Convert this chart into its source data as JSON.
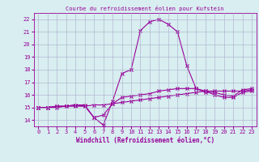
{
  "title": "Courbe du refroidissement éolien pour Kufstein",
  "xlabel": "Windchill (Refroidissement éolien,°C)",
  "x": [
    0,
    1,
    2,
    3,
    4,
    5,
    6,
    7,
    8,
    9,
    10,
    11,
    12,
    13,
    14,
    15,
    16,
    17,
    18,
    19,
    20,
    21,
    22,
    23
  ],
  "temp": [
    15.0,
    15.0,
    15.1,
    15.1,
    15.2,
    15.2,
    14.2,
    13.6,
    15.5,
    17.7,
    18.0,
    21.1,
    21.8,
    22.0,
    21.6,
    21.0,
    18.3,
    16.5,
    16.2,
    16.2,
    16.0,
    15.9,
    16.4,
    16.5
  ],
  "windchill": [
    15.0,
    15.0,
    15.1,
    15.1,
    15.2,
    15.1,
    14.2,
    14.4,
    15.3,
    15.8,
    15.9,
    16.0,
    16.1,
    16.3,
    16.4,
    16.5,
    16.5,
    16.5,
    16.3,
    16.0,
    15.8,
    15.8,
    16.2,
    16.3
  ],
  "ref": [
    15.0,
    15.0,
    15.0,
    15.1,
    15.1,
    15.1,
    15.2,
    15.2,
    15.3,
    15.4,
    15.5,
    15.6,
    15.7,
    15.8,
    15.9,
    16.0,
    16.1,
    16.2,
    16.3,
    16.3,
    16.3,
    16.3,
    16.3,
    16.4
  ],
  "line_color": "#990099",
  "bg_color": "#d8eef0",
  "grid_color": "#aaaacc",
  "ylim": [
    13.5,
    22.5
  ],
  "xlim": [
    -0.5,
    23.5
  ],
  "yticks": [
    14,
    15,
    16,
    17,
    18,
    19,
    20,
    21,
    22
  ],
  "xticks": [
    0,
    1,
    2,
    3,
    4,
    5,
    6,
    7,
    8,
    9,
    10,
    11,
    12,
    13,
    14,
    15,
    16,
    17,
    18,
    19,
    20,
    21,
    22,
    23
  ],
  "marker": "x",
  "markersize": 2.5,
  "linewidth": 0.8
}
